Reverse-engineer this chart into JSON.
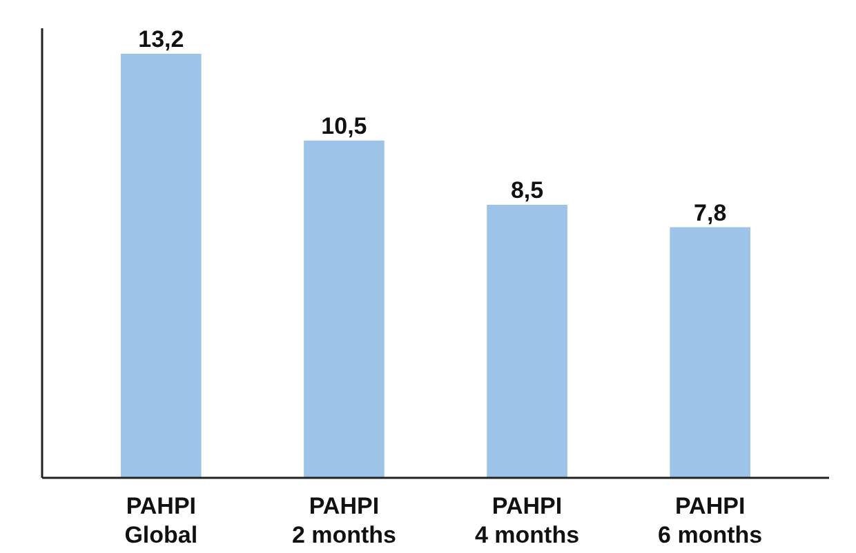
{
  "chart_data": {
    "type": "bar",
    "categories": [
      "PAHPI\nGlobal",
      "PAHPI\n2 months",
      "PAHPI\n4 months",
      "PAHPI\n6 months"
    ],
    "values": [
      13.2,
      10.5,
      8.5,
      7.8
    ],
    "value_labels": [
      "13,2",
      "10,5",
      "8,5",
      "7,8"
    ],
    "color": "#9dc3e9",
    "tick_labels": "x",
    "grid": false
  }
}
